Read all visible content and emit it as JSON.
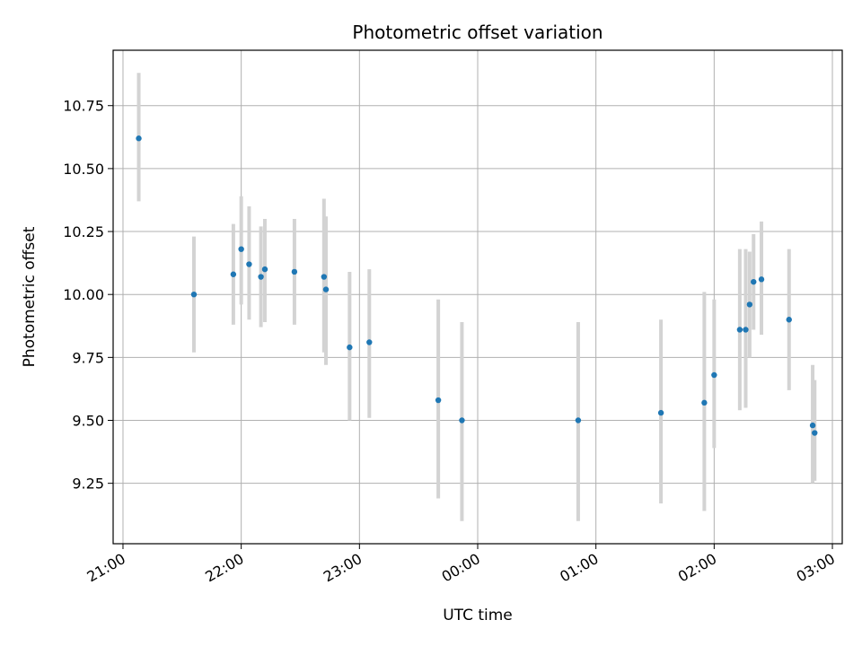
{
  "chart_data": {
    "type": "scatter",
    "title": "Photometric offset variation",
    "xlabel": "UTC time",
    "ylabel": "Photometric offset",
    "grid": true,
    "legend": "none",
    "x_axis_kind": "time",
    "xlim": [
      "20:55",
      "03:05"
    ],
    "ylim": [
      9.01,
      10.97
    ],
    "x_ticks": [
      {
        "time": "21:00",
        "label": "21:00"
      },
      {
        "time": "22:00",
        "label": "22:00"
      },
      {
        "time": "23:00",
        "label": "23:00"
      },
      {
        "time": "00:00",
        "label": "00:00"
      },
      {
        "time": "01:00",
        "label": "01:00"
      },
      {
        "time": "02:00",
        "label": "02:00"
      },
      {
        "time": "03:00",
        "label": "03:00"
      }
    ],
    "y_ticks": [
      {
        "value": 9.25,
        "label": "9.25"
      },
      {
        "value": 9.5,
        "label": "9.50"
      },
      {
        "value": 9.75,
        "label": "9.75"
      },
      {
        "value": 10.0,
        "label": "10.00"
      },
      {
        "value": 10.25,
        "label": "10.25"
      },
      {
        "value": 10.5,
        "label": "10.50"
      },
      {
        "value": 10.75,
        "label": "10.75"
      }
    ],
    "colors": {
      "marker": "#1f77b4",
      "errorbar": "#d3d3d3"
    },
    "points": [
      {
        "x": "21:08",
        "y": 10.62,
        "ylow": 10.37,
        "yhigh": 10.88
      },
      {
        "x": "21:36",
        "y": 10.0,
        "ylow": 9.77,
        "yhigh": 10.23
      },
      {
        "x": "21:56",
        "y": 10.08,
        "ylow": 9.88,
        "yhigh": 10.28
      },
      {
        "x": "22:00",
        "y": 10.18,
        "ylow": 9.96,
        "yhigh": 10.39
      },
      {
        "x": "22:04",
        "y": 10.12,
        "ylow": 9.9,
        "yhigh": 10.35
      },
      {
        "x": "22:10",
        "y": 10.07,
        "ylow": 9.87,
        "yhigh": 10.27
      },
      {
        "x": "22:12",
        "y": 10.1,
        "ylow": 9.89,
        "yhigh": 10.3
      },
      {
        "x": "22:27",
        "y": 10.09,
        "ylow": 9.88,
        "yhigh": 10.3
      },
      {
        "x": "22:42",
        "y": 10.07,
        "ylow": 9.77,
        "yhigh": 10.38
      },
      {
        "x": "22:43",
        "y": 10.02,
        "ylow": 9.72,
        "yhigh": 10.31
      },
      {
        "x": "22:55",
        "y": 9.79,
        "ylow": 9.5,
        "yhigh": 10.09
      },
      {
        "x": "23:05",
        "y": 9.81,
        "ylow": 9.51,
        "yhigh": 10.1
      },
      {
        "x": "23:40",
        "y": 9.58,
        "ylow": 9.19,
        "yhigh": 9.98
      },
      {
        "x": "23:52",
        "y": 9.5,
        "ylow": 9.1,
        "yhigh": 9.89
      },
      {
        "x": "00:51",
        "y": 9.5,
        "ylow": 9.1,
        "yhigh": 9.89
      },
      {
        "x": "01:33",
        "y": 9.53,
        "ylow": 9.17,
        "yhigh": 9.9
      },
      {
        "x": "01:55",
        "y": 9.57,
        "ylow": 9.14,
        "yhigh": 10.01
      },
      {
        "x": "02:00",
        "y": 9.68,
        "ylow": 9.39,
        "yhigh": 9.98
      },
      {
        "x": "02:13",
        "y": 9.86,
        "ylow": 9.54,
        "yhigh": 10.18
      },
      {
        "x": "02:16",
        "y": 9.86,
        "ylow": 9.55,
        "yhigh": 10.18
      },
      {
        "x": "02:18",
        "y": 9.96,
        "ylow": 9.75,
        "yhigh": 10.17
      },
      {
        "x": "02:20",
        "y": 10.05,
        "ylow": 9.86,
        "yhigh": 10.24
      },
      {
        "x": "02:24",
        "y": 10.06,
        "ylow": 9.84,
        "yhigh": 10.29
      },
      {
        "x": "02:38",
        "y": 9.9,
        "ylow": 9.62,
        "yhigh": 10.18
      },
      {
        "x": "02:50",
        "y": 9.48,
        "ylow": 9.25,
        "yhigh": 9.72
      },
      {
        "x": "02:51",
        "y": 9.45,
        "ylow": 9.26,
        "yhigh": 9.66
      }
    ]
  }
}
